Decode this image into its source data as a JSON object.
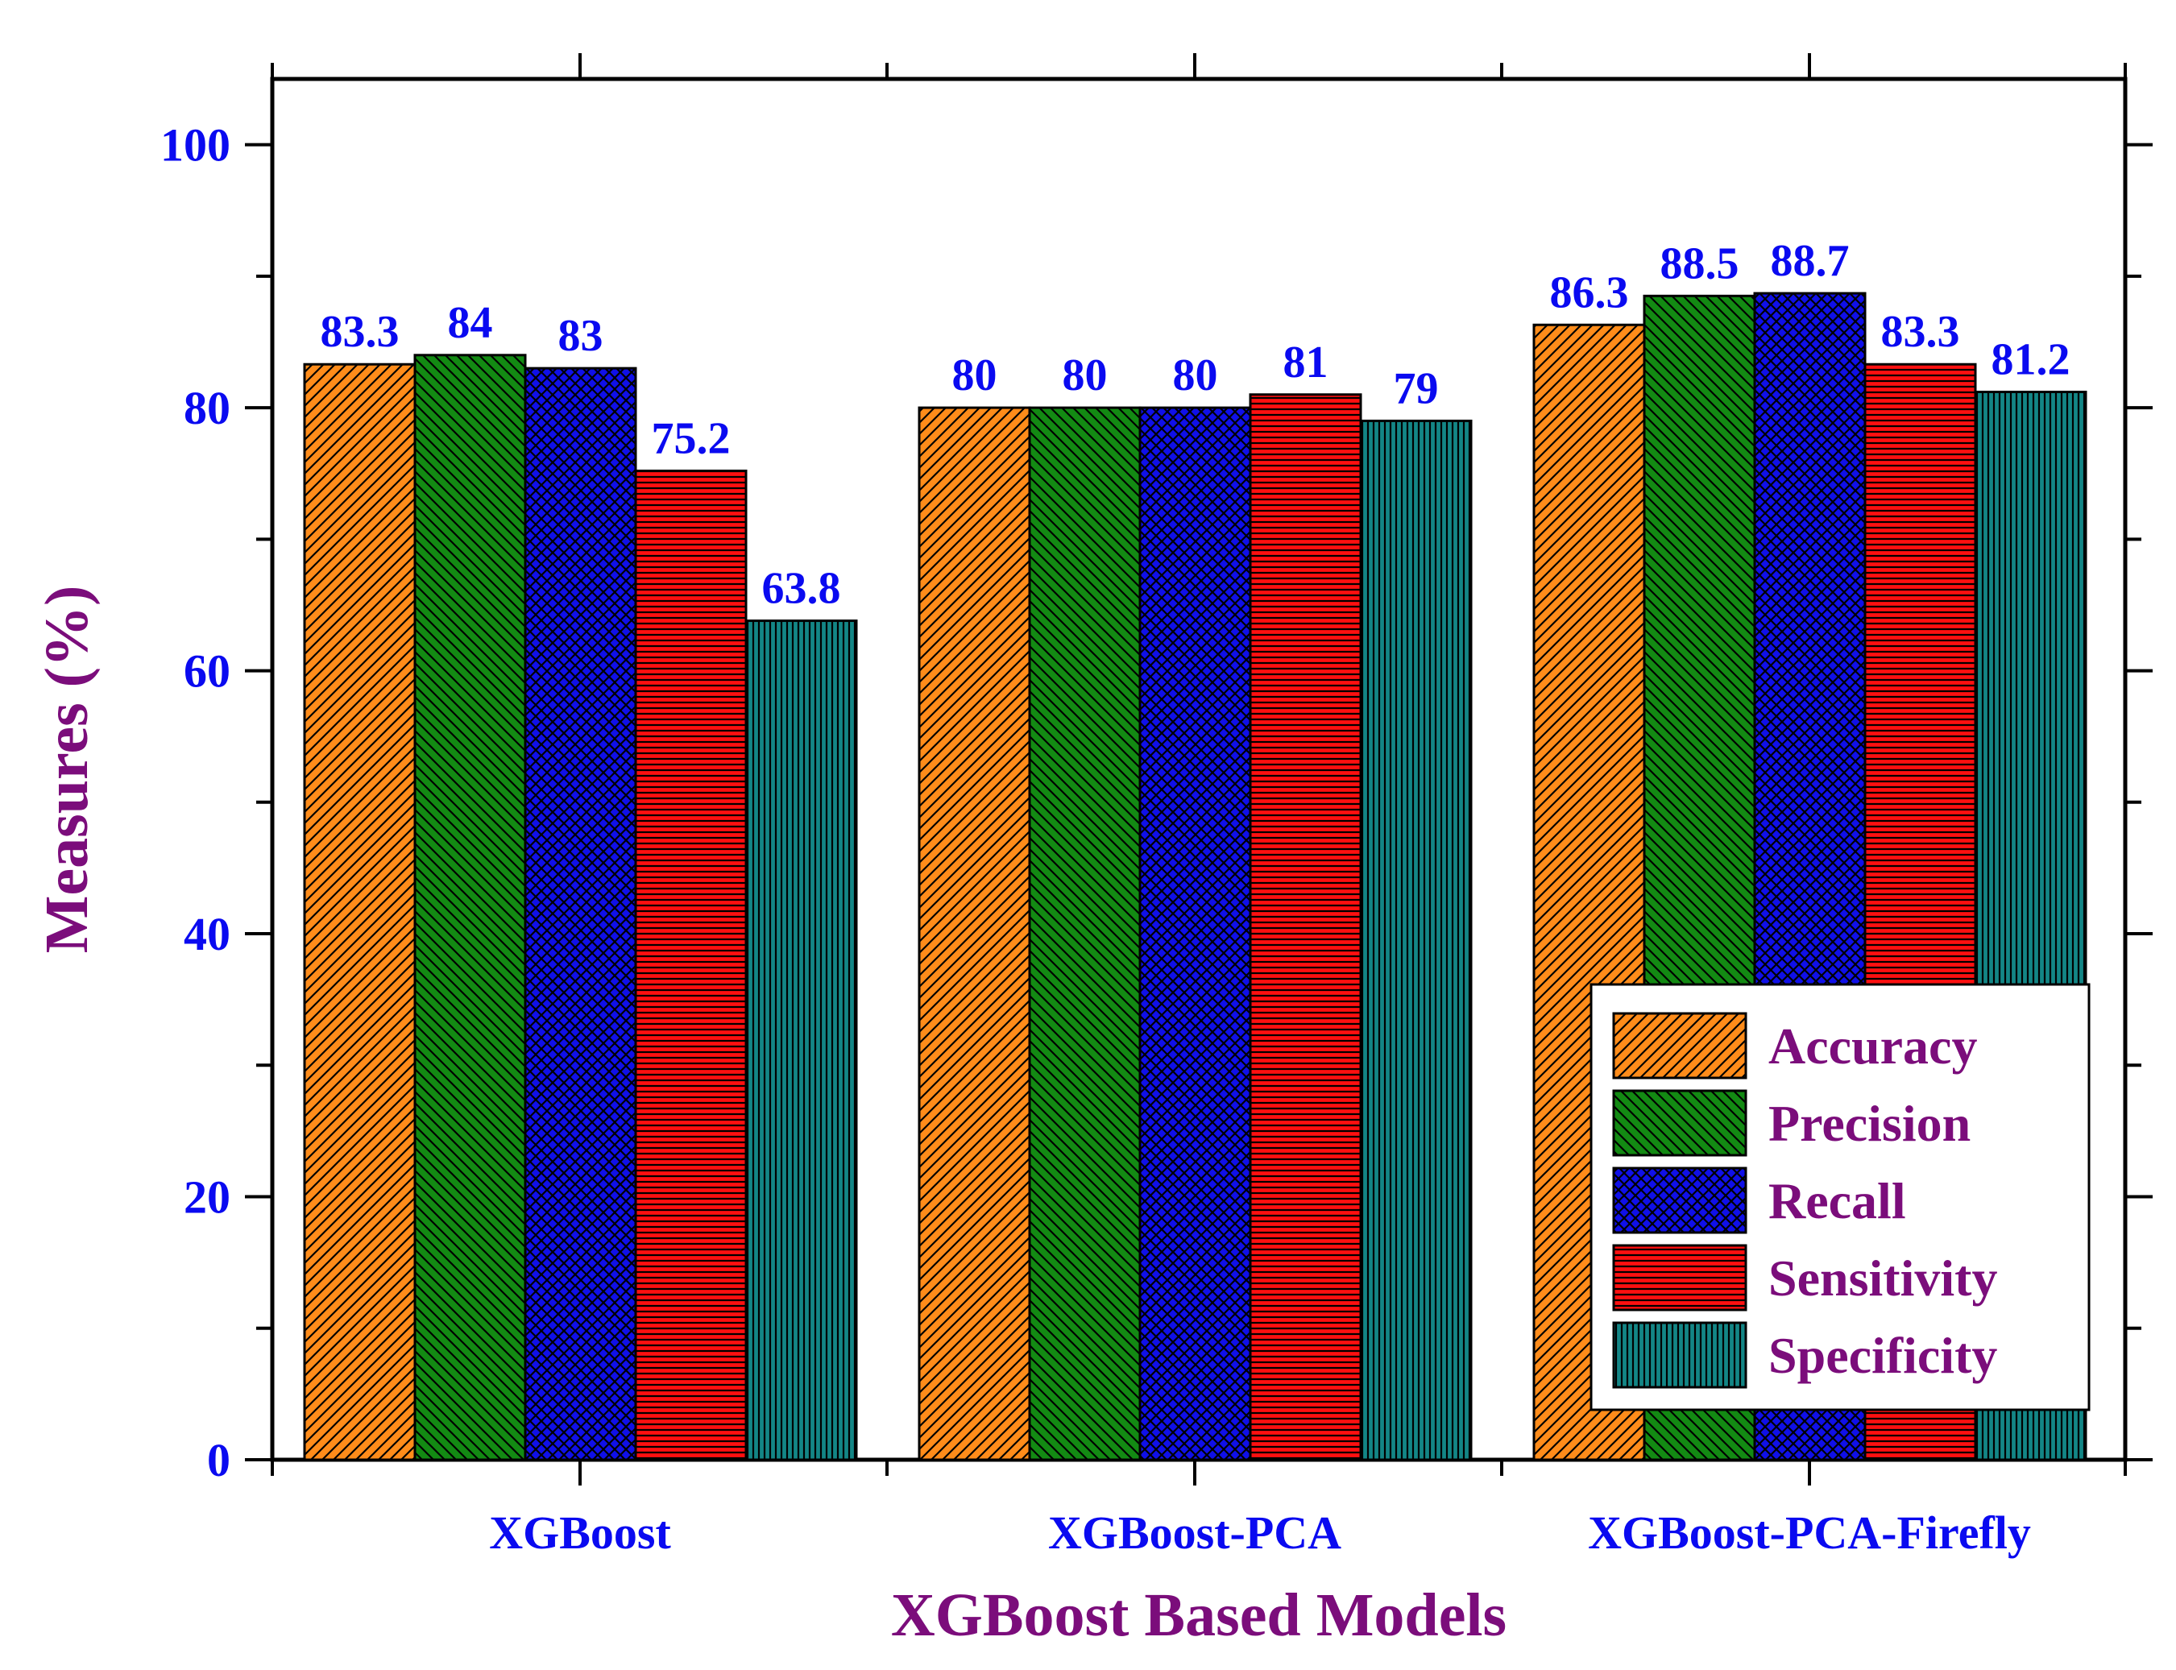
{
  "chart_data": {
    "type": "bar",
    "title": "",
    "xlabel": "XGBoost Based Models",
    "ylabel": "Measures (%)",
    "ylim": [
      0,
      105
    ],
    "yticks": [
      0,
      20,
      40,
      60,
      80,
      100
    ],
    "categories": [
      "XGBoost",
      "XGBoost-PCA",
      "XGBoost-PCA-Firefly"
    ],
    "series": [
      {
        "name": "Accuracy",
        "values": [
          83.3,
          80,
          86.3
        ],
        "labels": [
          "83.3",
          "80",
          "86.3"
        ],
        "color": "#ff8c1a",
        "pattern": "diag-up"
      },
      {
        "name": "Precision",
        "values": [
          84,
          80,
          88.5
        ],
        "labels": [
          "84",
          "80",
          "88.5"
        ],
        "color": "#138a13",
        "pattern": "diag-down"
      },
      {
        "name": "Recall",
        "values": [
          83,
          80,
          88.7
        ],
        "labels": [
          "83",
          "80",
          "88.7"
        ],
        "color": "#1010e8",
        "pattern": "crosshatch"
      },
      {
        "name": "Sensitivity",
        "values": [
          75.2,
          81,
          83.3
        ],
        "labels": [
          "75.2",
          "81",
          "83.3"
        ],
        "color": "#ff1010",
        "pattern": "horizontal"
      },
      {
        "name": "Specificity",
        "values": [
          63.8,
          79,
          81.2
        ],
        "labels": [
          "63.8",
          "79",
          "81.2"
        ],
        "color": "#138686",
        "pattern": "vertical"
      }
    ],
    "grid": false,
    "legend_position": "bottom-right",
    "colors": {
      "tick_label": "#0a0af0",
      "axis_title": "#7b0d7b",
      "data_label": "#0a0af0",
      "legend_text": "#7b0d7b"
    }
  }
}
